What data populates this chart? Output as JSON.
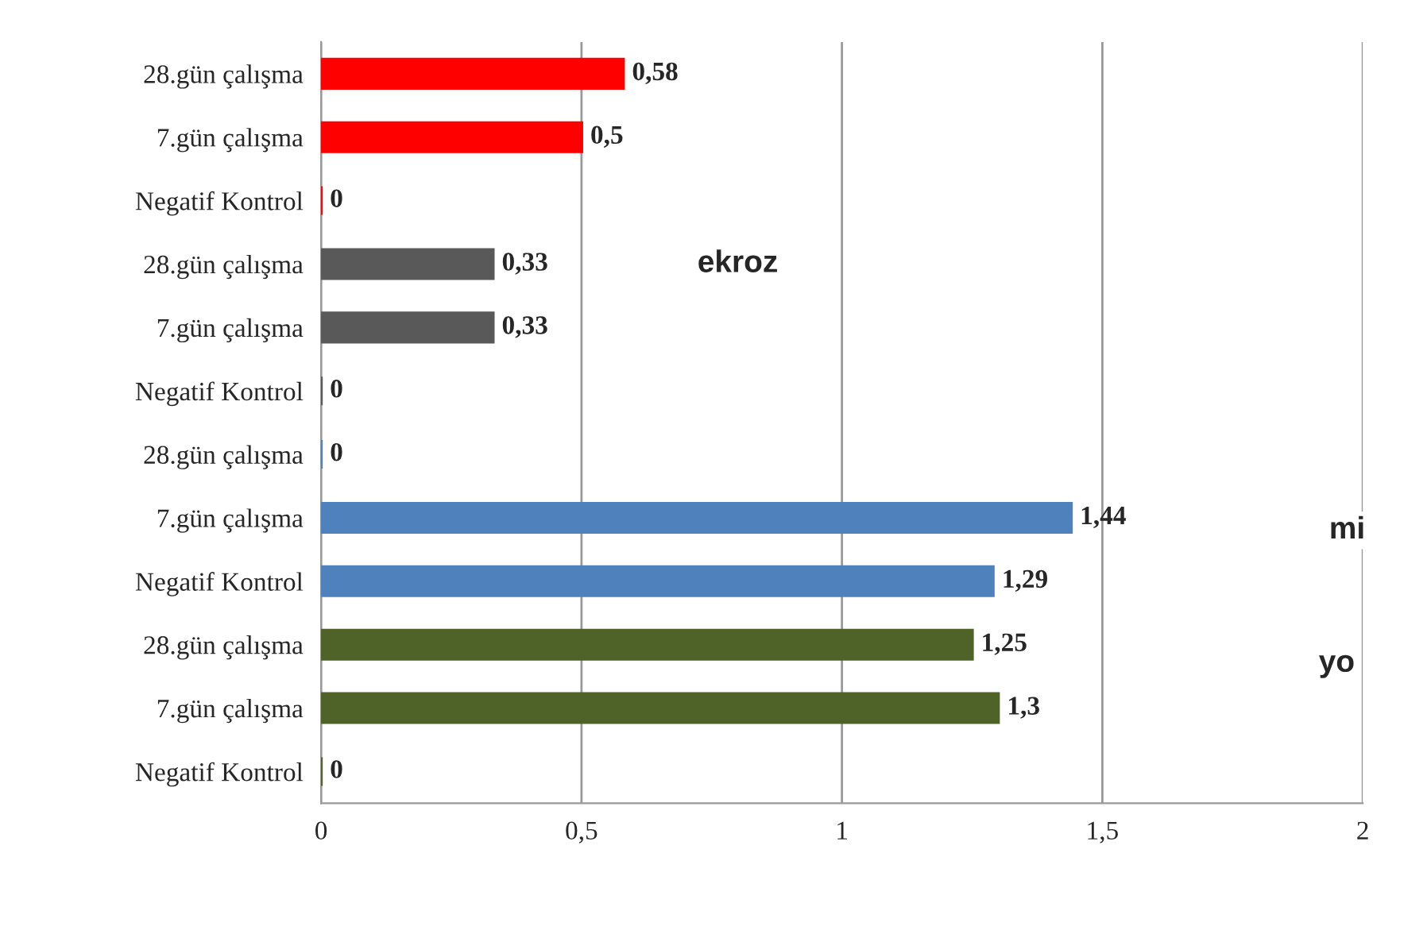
{
  "chart_data": {
    "type": "bar",
    "orientation": "horizontal",
    "categories": [
      "28.gün çalışma",
      "7.gün çalışma",
      "Negatif Kontrol",
      "28.gün çalışma",
      "7.gün çalışma",
      "Negatif Kontrol",
      "28.gün çalışma",
      "7.gün çalışma",
      "Negatif Kontrol",
      "28.gün çalışma",
      "7.gün çalışma",
      "Negatif Kontrol"
    ],
    "values": [
      0.58,
      0.5,
      0,
      0.33,
      0.33,
      0,
      0,
      1.44,
      1.29,
      1.25,
      1.3,
      0
    ],
    "value_labels": [
      "0,58",
      "0,5",
      "0",
      "0,33",
      "0,33",
      "0",
      "0",
      "1,44",
      "1,29",
      "1,25",
      "1,3",
      "0"
    ],
    "colors": [
      "#ff0000",
      "#ff0000",
      "#ff0000",
      "#595959",
      "#595959",
      "#595959",
      "#4f81bd",
      "#4f81bd",
      "#4f81bd",
      "#4f6228",
      "#4f6228",
      "#4f6228"
    ],
    "xlim": [
      0,
      2
    ],
    "xticks": [
      0,
      {
        "value": 0.5,
        "label": "0,5"
      },
      1,
      {
        "value": 1.5,
        "label": "1,5"
      },
      2
    ],
    "grid": "x",
    "annotations": [
      "ekroz",
      "mi",
      "yo"
    ]
  }
}
